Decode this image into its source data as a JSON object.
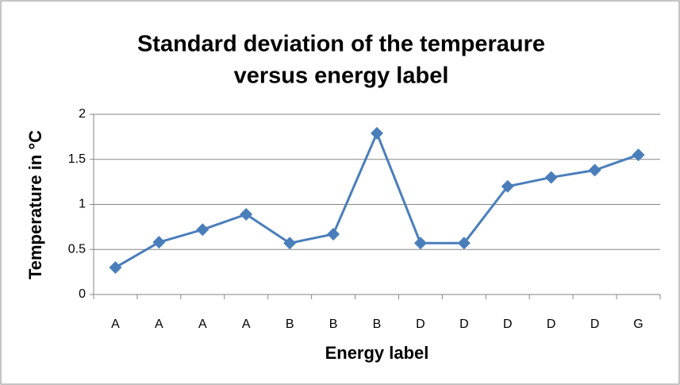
{
  "chart_data": {
    "type": "line",
    "title": [
      "Standard deviation of the temperaure",
      "versus energy label"
    ],
    "x_label": "Energy label",
    "y_label": "Temperature in °C",
    "categories": [
      "A",
      "A",
      "A",
      "A",
      "B",
      "B",
      "B",
      "D",
      "D",
      "D",
      "D",
      "D",
      "G"
    ],
    "series": [
      {
        "color": "#4a7ebb",
        "values": [
          0.3,
          0.58,
          0.72,
          0.89,
          0.57,
          0.67,
          1.79,
          0.57,
          0.57,
          1.2,
          1.3,
          1.38,
          1.55
        ]
      }
    ],
    "ylim": [
      0,
      2
    ],
    "yticks": [
      0,
      0.5,
      1,
      1.5,
      2
    ],
    "grid": true
  }
}
